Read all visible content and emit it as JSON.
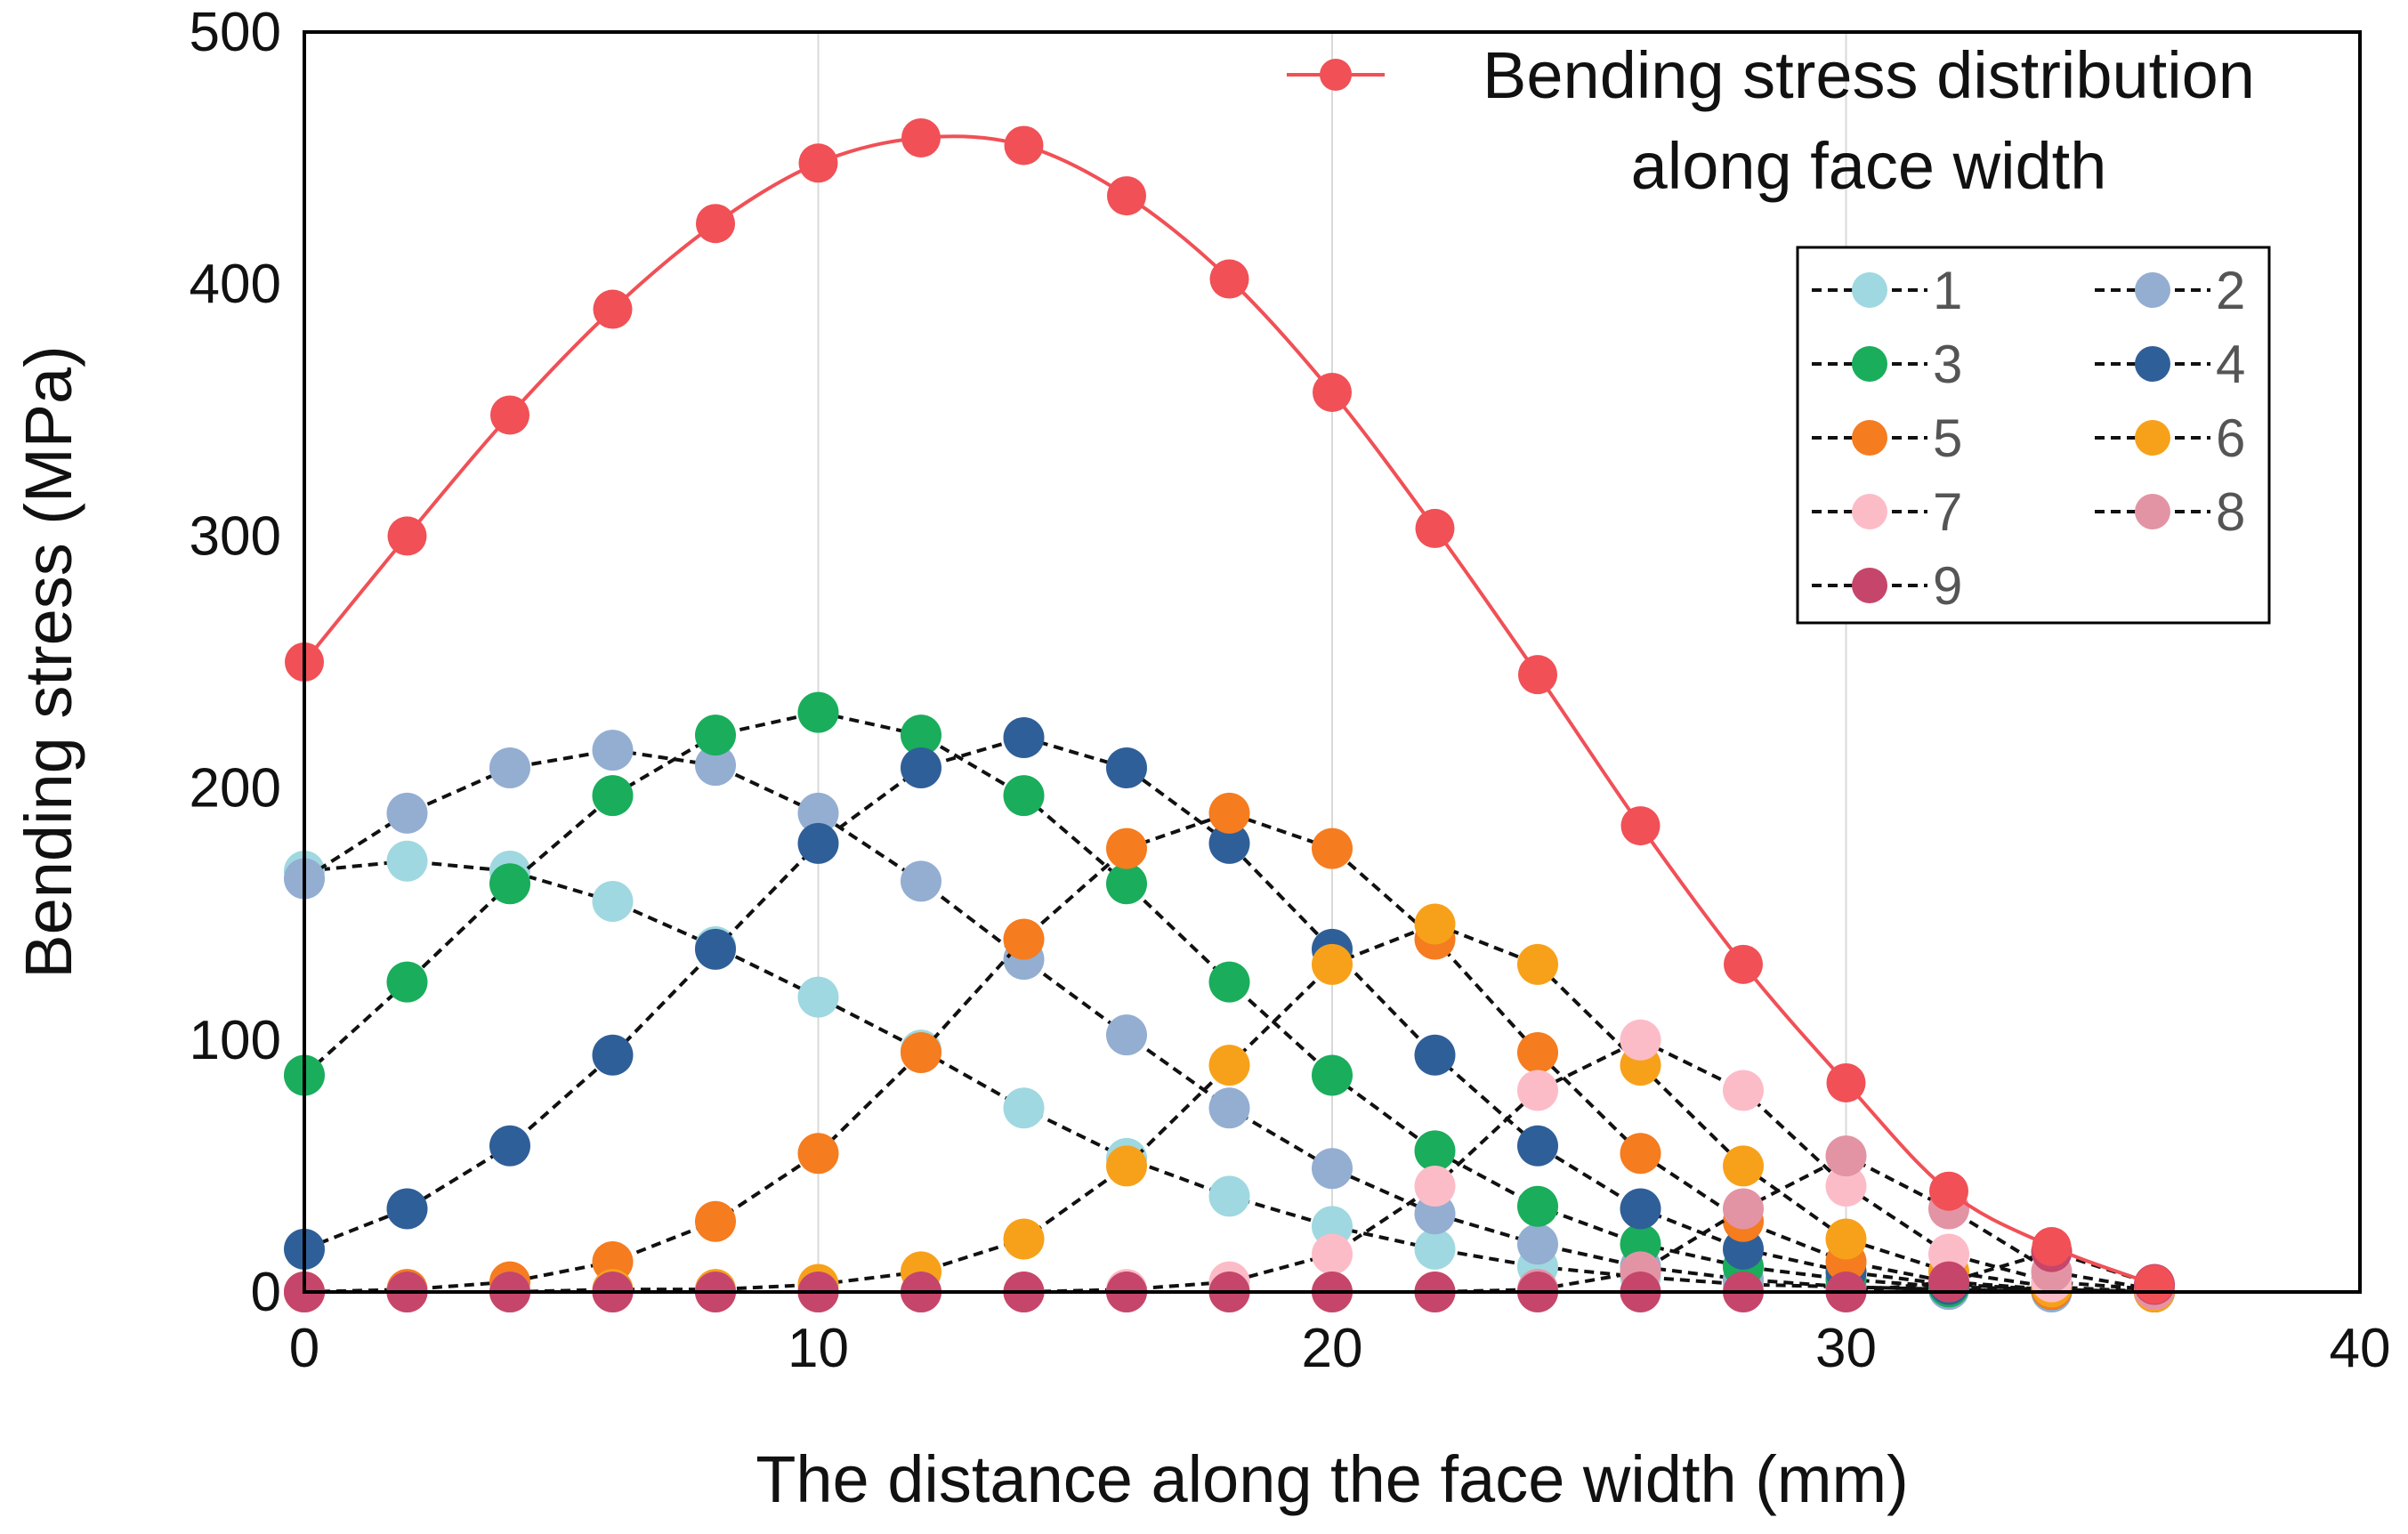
{
  "chart_data": {
    "type": "line",
    "title": "",
    "xlabel": "The distance along the face width (mm)",
    "ylabel": "Bending stress (MPa)",
    "xlim": [
      0,
      40
    ],
    "ylim": [
      0,
      500
    ],
    "xticks": [
      0,
      10,
      20,
      30,
      40
    ],
    "yticks": [
      0,
      100,
      200,
      300,
      400,
      500
    ],
    "grid": "vertical",
    "x": [
      0,
      2,
      4,
      6,
      8,
      10,
      12,
      14,
      16,
      18,
      20,
      22,
      24,
      26,
      28,
      30,
      32,
      34,
      36
    ],
    "main_series": {
      "name": "Bending stress distribution along face width",
      "label_line1": "Bending stress distribution",
      "label_line2": "along face width",
      "color": "#f05056",
      "values": [
        250,
        300,
        348,
        390,
        424,
        448,
        458,
        455,
        435,
        402,
        357,
        303,
        245,
        185,
        130,
        83,
        40,
        18,
        3
      ]
    },
    "series": [
      {
        "name": "1",
        "color": "#9fd8e0",
        "values": [
          167,
          171,
          167,
          155,
          137,
          117,
          96,
          73,
          53,
          38,
          26,
          17,
          10,
          6,
          3,
          2,
          1,
          0,
          0
        ]
      },
      {
        "name": "2",
        "color": "#93aed1",
        "values": [
          164,
          190,
          208,
          215,
          209,
          190,
          163,
          132,
          102,
          73,
          49,
          31,
          19,
          10,
          5,
          2,
          1,
          0,
          0
        ]
      },
      {
        "name": "3",
        "color": "#1aad5c",
        "values": [
          86,
          123,
          162,
          197,
          221,
          230,
          221,
          197,
          162,
          123,
          86,
          56,
          34,
          19,
          10,
          5,
          2,
          1,
          0
        ]
      },
      {
        "name": "4",
        "color": "#2f5f98",
        "values": [
          17,
          33,
          58,
          94,
          136,
          178,
          208,
          220,
          208,
          178,
          136,
          94,
          58,
          33,
          17,
          8,
          3,
          1,
          0
        ]
      },
      {
        "name": "5",
        "color": "#f57c1f",
        "values": [
          0,
          1,
          4,
          12,
          28,
          55,
          95,
          140,
          176,
          190,
          176,
          140,
          95,
          55,
          28,
          12,
          4,
          1,
          0
        ]
      },
      {
        "name": "6",
        "color": "#f7a11a",
        "values": [
          0,
          0,
          0,
          1,
          1,
          3,
          8,
          21,
          50,
          90,
          130,
          146,
          130,
          90,
          50,
          21,
          8,
          2,
          0
        ]
      },
      {
        "name": "7",
        "color": "#fcbcc7",
        "values": [
          0,
          0,
          0,
          0,
          0,
          0,
          0,
          0,
          1,
          4,
          15,
          42,
          80,
          100,
          80,
          42,
          15,
          4,
          1
        ]
      },
      {
        "name": "8",
        "color": "#e394a4",
        "values": [
          0,
          0,
          0,
          0,
          0,
          0,
          0,
          0,
          0,
          0,
          0,
          0,
          1,
          8,
          33,
          54,
          33,
          8,
          1
        ]
      },
      {
        "name": "9",
        "color": "#c5466a",
        "values": [
          0,
          0,
          0,
          0,
          0,
          0,
          0,
          0,
          0,
          0,
          0,
          0,
          0,
          0,
          0,
          0,
          4,
          16,
          3
        ]
      }
    ]
  }
}
